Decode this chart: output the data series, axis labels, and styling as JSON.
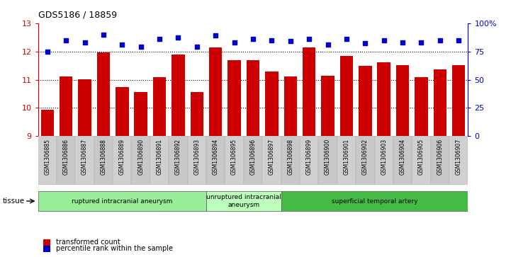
{
  "title": "GDS5186 / 18859",
  "samples": [
    "GSM1306885",
    "GSM1306886",
    "GSM1306887",
    "GSM1306888",
    "GSM1306889",
    "GSM1306890",
    "GSM1306891",
    "GSM1306892",
    "GSM1306893",
    "GSM1306894",
    "GSM1306895",
    "GSM1306896",
    "GSM1306897",
    "GSM1306898",
    "GSM1306899",
    "GSM1306900",
    "GSM1306901",
    "GSM1306902",
    "GSM1306903",
    "GSM1306904",
    "GSM1306905",
    "GSM1306906",
    "GSM1306907"
  ],
  "bar_values": [
    9.93,
    11.12,
    11.01,
    11.97,
    10.73,
    10.55,
    11.1,
    11.9,
    10.55,
    12.15,
    11.68,
    11.7,
    11.28,
    11.12,
    12.13,
    11.14,
    11.85,
    11.48,
    11.62,
    11.52,
    11.1,
    11.37,
    11.52
  ],
  "percentile_values": [
    75,
    85,
    83,
    90,
    81,
    79,
    86,
    87,
    79,
    89,
    83,
    86,
    85,
    84,
    86,
    81,
    86,
    82,
    85,
    83,
    83,
    85,
    85
  ],
  "bar_color": "#cc0000",
  "dot_color": "#0000cc",
  "ylim_left": [
    9,
    13
  ],
  "ylim_right": [
    0,
    100
  ],
  "yticks_left": [
    9,
    10,
    11,
    12,
    13
  ],
  "yticks_right": [
    0,
    25,
    50,
    75,
    100
  ],
  "ytick_labels_right": [
    "0",
    "25",
    "50",
    "75",
    "100%"
  ],
  "groups": [
    {
      "label": "ruptured intracranial aneurysm",
      "start": 0,
      "end": 9,
      "color": "#99ee99"
    },
    {
      "label": "unruptured intracranial\naneurysm",
      "start": 9,
      "end": 13,
      "color": "#bbffbb"
    },
    {
      "label": "superficial temporal artery",
      "start": 13,
      "end": 23,
      "color": "#44bb44"
    }
  ],
  "tissue_label": "tissue",
  "legend_bar_label": "transformed count",
  "legend_dot_label": "percentile rank within the sample",
  "tick_color_left": "#cc0000",
  "tick_color_right": "#0000cc",
  "xticklabel_bg": "#d8d8d8"
}
